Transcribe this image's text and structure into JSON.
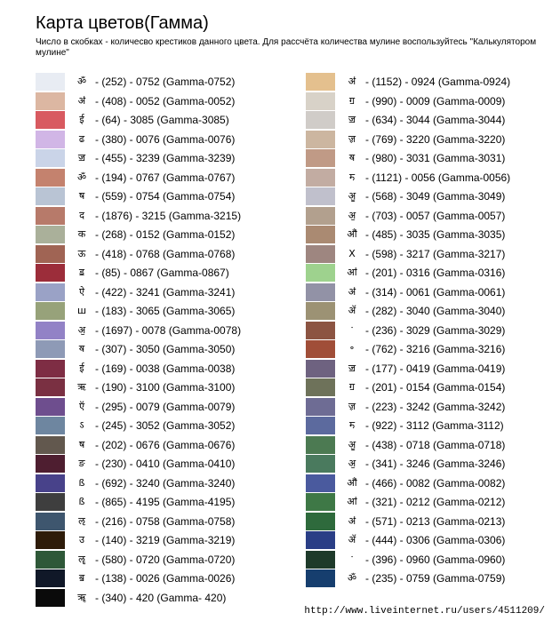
{
  "header": {
    "title": "Карта цветов(Гамма)",
    "subtitle": "Число в скобках - количесво крестиков данного цвета. Для рассчёта количества мулине воспользуйтесь \"Калькулятором мулине\""
  },
  "footer": {
    "url": "http://www.liveinternet.ru/users/4511209/"
  },
  "left_column": [
    {
      "symbol": "ॐ",
      "label": "- (252) - 0752 (Gamma-0752)",
      "color": "#e8ecf3"
    },
    {
      "symbol": "ॳ",
      "label": "- (408) - 0052 (Gamma-0052)",
      "color": "#dcb7a2"
    },
    {
      "symbol": "ई",
      "label": "- (64) - 3085 (Gamma-3085)",
      "color": "#d85a60"
    },
    {
      "symbol": "ढ",
      "label": "- (380) - 0076 (Gamma-0076)",
      "color": "#d1b6e6"
    },
    {
      "symbol": "ॼ",
      "label": "- (455) - 3239 (Gamma-3239)",
      "color": "#cad4e8"
    },
    {
      "symbol": "ॐ",
      "label": "- (194) - 0767 (Gamma-0767)",
      "color": "#c4826e"
    },
    {
      "symbol": "ष",
      "label": "- (559) - 0754 (Gamma-0754)",
      "color": "#b9c4d4"
    },
    {
      "symbol": "द",
      "label": "- (1876) - 3215 (Gamma-3215)",
      "color": "#b77a6a"
    },
    {
      "symbol": "क",
      "label": "- (268) - 0152 (Gamma-0152)",
      "color": "#aab09a"
    },
    {
      "symbol": "ऊ",
      "label": "- (418) - 0768 (Gamma-0768)",
      "color": "#a06454"
    },
    {
      "symbol": "ॾ",
      "label": "- (85) - 0867 (Gamma-0867)",
      "color": "#9c2d3a"
    },
    {
      "symbol": "ऐ",
      "label": "- (422) - 3241 (Gamma-3241)",
      "color": "#9aa2c6"
    },
    {
      "symbol": "ш",
      "label": "- (183) - 3065 (Gamma-3065)",
      "color": "#97a27a"
    },
    {
      "symbol": "ॶ",
      "label": "- (1697) - 0078 (Gamma-0078)",
      "color": "#9282c6"
    },
    {
      "symbol": "ॺ",
      "label": "- (307) - 3050 (Gamma-3050)",
      "color": "#8e9ab6"
    },
    {
      "symbol": "ई",
      "label": "- (169) - 0038 (Gamma-0038)",
      "color": "#7e2d44"
    },
    {
      "symbol": "ऋ",
      "label": "- (190) - 3100 (Gamma-3100)",
      "color": "#7a3042"
    },
    {
      "symbol": "ऍ",
      "label": "- (295) - 0079 (Gamma-0079)",
      "color": "#6e4e8e"
    },
    {
      "symbol": "ऽ",
      "label": "- (245) - 3052 (Gamma-3052)",
      "color": "#6e86a0"
    },
    {
      "symbol": "ष",
      "label": "- (202) - 0676 (Gamma-0676)",
      "color": "#62584e"
    },
    {
      "symbol": "ङ",
      "label": "- (230) - 0410 (Gamma-0410)",
      "color": "#4e1e30"
    },
    {
      "symbol": "ß",
      "label": "- (692) - 3240 (Gamma-3240)",
      "color": "#48428a"
    },
    {
      "symbol": "ß",
      "label": "- (865) - 4195 (Gamma-4195)",
      "color": "#3e3e3e"
    },
    {
      "symbol": "ऌ",
      "label": "- (216) - 0758 (Gamma-0758)",
      "color": "#3e566e"
    },
    {
      "symbol": "उ",
      "label": "- (140) - 3219 (Gamma-3219)",
      "color": "#2e1c0a"
    },
    {
      "symbol": "ॡ",
      "label": "- (580) - 0720 (Gamma-0720)",
      "color": "#2e5838"
    },
    {
      "symbol": "ॿ",
      "label": "- (138) - 0026 (Gamma-0026)",
      "color": "#101828"
    },
    {
      "symbol": "ॠ",
      "label": "- (340) -  420 (Gamma- 420)",
      "color": "#0a0a0a"
    }
  ],
  "right_column": [
    {
      "symbol": "ॳ",
      "label": "- (1152) - 0924 (Gamma-0924)",
      "color": "#e4c08e"
    },
    {
      "symbol": "ॻ",
      "label": "- (990) - 0009 (Gamma-0009)",
      "color": "#d8d2c8"
    },
    {
      "symbol": "ॼ",
      "label": "- (634) - 3044 (Gamma-3044)",
      "color": "#d0ccc8"
    },
    {
      "symbol": "ॹ",
      "label": "- (769) - 3220 (Gamma-3220)",
      "color": "#ccb6a0"
    },
    {
      "symbol": "ॺ",
      "label": "- (980) - 3031 (Gamma-3031)",
      "color": "#c09a86"
    },
    {
      "symbol": "ॸ",
      "label": "- (1121) - 0056 (Gamma-0056)",
      "color": "#c2aca2"
    },
    {
      "symbol": "ॷ",
      "label": "- (568) - 3049 (Gamma-3049)",
      "color": "#c0c0cc"
    },
    {
      "symbol": "ॶ",
      "label": "- (703) - 0057 (Gamma-0057)",
      "color": "#b2a08e"
    },
    {
      "symbol": "ॵ",
      "label": "- (485) - 3035 (Gamma-3035)",
      "color": "#aa8a72"
    },
    {
      "symbol": "X",
      "label": "- (598) - 3217 (Gamma-3217)",
      "color": "#9e8680"
    },
    {
      "symbol": "ॴ",
      "label": "- (201) - 0316 (Gamma-0316)",
      "color": "#9ed28e"
    },
    {
      "symbol": "ॳ",
      "label": "- (314) - 0061 (Gamma-0061)",
      "color": "#9292a6"
    },
    {
      "symbol": "ॲ",
      "label": "- (282) - 3040 (Gamma-3040)",
      "color": "#9c9274"
    },
    {
      "symbol": "ॱ",
      "label": "- (236) - 3029 (Gamma-3029)",
      "color": "#8c5442"
    },
    {
      "symbol": "॰",
      "label": "- (762) - 3216 (Gamma-3216)",
      "color": "#a04e38"
    },
    {
      "symbol": "ॼ",
      "label": "- (177) - 0419 (Gamma-0419)",
      "color": "#6e6280"
    },
    {
      "symbol": "ॻ",
      "label": "- (201) - 0154 (Gamma-0154)",
      "color": "#6e725a"
    },
    {
      "symbol": "ॹ",
      "label": "- (223) - 3242 (Gamma-3242)",
      "color": "#6e6c94"
    },
    {
      "symbol": "ॸ",
      "label": "- (922) - 3112 (Gamma-3112)",
      "color": "#5c6a9e"
    },
    {
      "symbol": "ॷ",
      "label": "- (438) - 0718 (Gamma-0718)",
      "color": "#4c7a52"
    },
    {
      "symbol": "ॶ",
      "label": "- (341) - 3246 (Gamma-3246)",
      "color": "#4a7a5e"
    },
    {
      "symbol": "ॵ",
      "label": "- (466) - 0082 (Gamma-0082)",
      "color": "#4a5a9e"
    },
    {
      "symbol": "ॴ",
      "label": "- (321) - 0212 (Gamma-0212)",
      "color": "#3e7846"
    },
    {
      "symbol": "ॳ",
      "label": "- (571) - 0213 (Gamma-0213)",
      "color": "#2e6a3c"
    },
    {
      "symbol": "ॲ",
      "label": "- (444) - 0306 (Gamma-0306)",
      "color": "#2a3e86"
    },
    {
      "symbol": "ॱ",
      "label": "- (396) - 0960 (Gamma-0960)",
      "color": "#1e3a2a"
    },
    {
      "symbol": "ॐ",
      "label": "- (235) - 0759 (Gamma-0759)",
      "color": "#163e6e"
    }
  ]
}
